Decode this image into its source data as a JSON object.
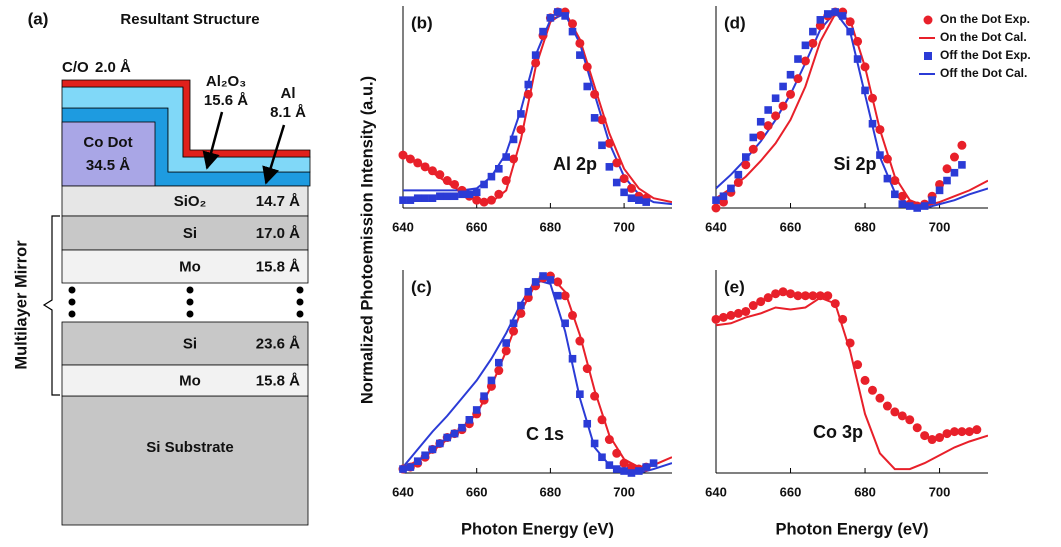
{
  "y_label": "Normalized Photoemission Intensity (a.u.)",
  "diagram": {
    "panel_label": "(a)",
    "title": "Resultant Structure",
    "side_label": "Multilayer Mirror",
    "cap": {
      "label": "C/O",
      "thickness": "2.0 Å"
    },
    "oxide": {
      "label": "Al₂O₃",
      "thickness": "15.6 Å"
    },
    "metal": {
      "label": "Al",
      "thickness": "8.1 Å"
    },
    "dot": {
      "label": "Co Dot",
      "thickness": "34.5 Å"
    },
    "layers": [
      {
        "material": "SiO₂",
        "thickness": "14.7 Å"
      },
      {
        "material": "Si",
        "thickness": "17.0 Å"
      },
      {
        "material": "Mo",
        "thickness": "15.8 Å"
      },
      {
        "material": "Si",
        "thickness": "23.6 Å"
      },
      {
        "material": "Mo",
        "thickness": "15.8 Å"
      }
    ],
    "substrate": "Si Substrate"
  },
  "chart_data": [
    {
      "type": "line",
      "panel_label": "(b)",
      "annotation": "Al 2p",
      "xlim": [
        640,
        713
      ],
      "xticks": [
        640,
        660,
        680,
        700
      ],
      "ylim": [
        0,
        1
      ],
      "series": [
        {
          "color": "#e8202a",
          "style": "circle",
          "x": [
            640,
            642,
            644,
            646,
            648,
            650,
            652,
            654,
            656,
            658,
            660,
            662,
            664,
            666,
            668,
            670,
            672,
            674,
            676,
            678,
            680,
            682,
            684,
            686,
            688,
            690,
            692,
            694,
            696,
            698,
            700,
            702,
            704,
            706
          ],
          "values": [
            0.27,
            0.25,
            0.23,
            0.21,
            0.19,
            0.17,
            0.14,
            0.12,
            0.09,
            0.06,
            0.04,
            0.03,
            0.04,
            0.07,
            0.14,
            0.25,
            0.4,
            0.58,
            0.74,
            0.88,
            0.97,
            1.0,
            1.0,
            0.94,
            0.84,
            0.72,
            0.58,
            0.45,
            0.33,
            0.23,
            0.15,
            0.1,
            0.06,
            0.05
          ]
        },
        {
          "color": "#e8202a",
          "style": "line",
          "x": [
            640,
            644,
            648,
            652,
            656,
            660,
            664,
            668,
            672,
            676,
            680,
            684,
            688,
            692,
            696,
            700,
            704,
            708,
            713
          ],
          "values": [
            0.28,
            0.23,
            0.18,
            0.13,
            0.08,
            0.04,
            0.03,
            0.09,
            0.35,
            0.72,
            0.95,
            1.0,
            0.86,
            0.62,
            0.38,
            0.2,
            0.1,
            0.05,
            0.03
          ]
        },
        {
          "color": "#2b3bd6",
          "style": "square",
          "x": [
            640,
            642,
            644,
            646,
            648,
            650,
            652,
            654,
            656,
            658,
            660,
            662,
            664,
            666,
            668,
            670,
            672,
            674,
            676,
            678,
            680,
            682,
            684,
            686,
            688,
            690,
            692,
            694,
            696,
            698,
            700,
            702,
            704,
            706
          ],
          "values": [
            0.04,
            0.04,
            0.05,
            0.05,
            0.05,
            0.06,
            0.06,
            0.06,
            0.07,
            0.07,
            0.08,
            0.12,
            0.16,
            0.2,
            0.26,
            0.35,
            0.48,
            0.63,
            0.78,
            0.9,
            0.97,
            1.0,
            0.98,
            0.9,
            0.78,
            0.62,
            0.46,
            0.32,
            0.21,
            0.13,
            0.08,
            0.05,
            0.04,
            0.03
          ]
        },
        {
          "color": "#2b3bd6",
          "style": "line",
          "x": [
            640,
            644,
            648,
            652,
            656,
            660,
            664,
            668,
            672,
            676,
            680,
            684,
            688,
            692,
            696,
            700,
            704,
            708,
            713
          ],
          "values": [
            0.09,
            0.09,
            0.09,
            0.09,
            0.09,
            0.1,
            0.16,
            0.28,
            0.5,
            0.78,
            0.96,
            0.99,
            0.84,
            0.58,
            0.33,
            0.16,
            0.07,
            0.03,
            0.02
          ]
        }
      ]
    },
    {
      "type": "line",
      "panel_label": "(d)",
      "annotation": "Si 2p",
      "xlim": [
        640,
        713
      ],
      "xticks": [
        640,
        660,
        680,
        700
      ],
      "ylim": [
        0,
        1
      ],
      "legend": "top-right",
      "series": [
        {
          "name": "On the Dot Exp.",
          "color": "#e8202a",
          "style": "circle",
          "x": [
            640,
            642,
            644,
            646,
            648,
            650,
            652,
            654,
            656,
            658,
            660,
            662,
            664,
            666,
            668,
            670,
            672,
            674,
            676,
            678,
            680,
            682,
            684,
            686,
            688,
            690,
            692,
            694,
            696,
            698,
            700,
            702,
            704,
            706
          ],
          "values": [
            0.0,
            0.03,
            0.08,
            0.13,
            0.22,
            0.3,
            0.37,
            0.42,
            0.47,
            0.52,
            0.58,
            0.66,
            0.75,
            0.84,
            0.93,
            0.98,
            1.0,
            1.0,
            0.95,
            0.85,
            0.72,
            0.56,
            0.4,
            0.25,
            0.14,
            0.06,
            0.02,
            0.01,
            0.02,
            0.06,
            0.12,
            0.2,
            0.26,
            0.32
          ]
        },
        {
          "name": "On the Dot Cal.",
          "color": "#e8202a",
          "style": "line",
          "x": [
            640,
            644,
            648,
            652,
            656,
            660,
            664,
            668,
            672,
            676,
            680,
            684,
            688,
            692,
            696,
            700,
            704,
            708,
            713
          ],
          "values": [
            0.05,
            0.1,
            0.16,
            0.24,
            0.33,
            0.45,
            0.62,
            0.85,
            0.99,
            0.96,
            0.72,
            0.4,
            0.16,
            0.04,
            0.01,
            0.03,
            0.06,
            0.09,
            0.14
          ]
        },
        {
          "name": "Off the Dot Exp.",
          "color": "#2b3bd6",
          "style": "square",
          "x": [
            640,
            642,
            644,
            646,
            648,
            650,
            652,
            654,
            656,
            658,
            660,
            662,
            664,
            666,
            668,
            670,
            672,
            674,
            676,
            678,
            680,
            682,
            684,
            686,
            688,
            690,
            692,
            694,
            696,
            698,
            700,
            702,
            704,
            706
          ],
          "values": [
            0.04,
            0.06,
            0.1,
            0.17,
            0.26,
            0.36,
            0.44,
            0.5,
            0.56,
            0.62,
            0.68,
            0.76,
            0.83,
            0.9,
            0.96,
            0.99,
            1.0,
            0.98,
            0.9,
            0.76,
            0.6,
            0.43,
            0.27,
            0.15,
            0.07,
            0.02,
            0.01,
            0.0,
            0.01,
            0.04,
            0.09,
            0.14,
            0.18,
            0.22
          ]
        },
        {
          "name": "Off the Dot Cal.",
          "color": "#2b3bd6",
          "style": "line",
          "x": [
            640,
            644,
            648,
            652,
            656,
            660,
            664,
            668,
            672,
            676,
            680,
            684,
            688,
            692,
            696,
            700,
            704,
            708,
            713
          ],
          "values": [
            0.1,
            0.17,
            0.25,
            0.34,
            0.45,
            0.58,
            0.74,
            0.91,
            1.0,
            0.9,
            0.58,
            0.26,
            0.08,
            0.01,
            0.0,
            0.02,
            0.04,
            0.07,
            0.1
          ]
        }
      ]
    },
    {
      "type": "line",
      "panel_label": "(c)",
      "annotation": "C 1s",
      "x_label": "Photon Energy (eV)",
      "xlim": [
        640,
        713
      ],
      "xticks": [
        640,
        660,
        680,
        700
      ],
      "ylim": [
        0,
        1
      ],
      "series": [
        {
          "color": "#e8202a",
          "style": "circle",
          "x": [
            640,
            642,
            644,
            646,
            648,
            650,
            652,
            654,
            656,
            658,
            660,
            662,
            664,
            666,
            668,
            670,
            672,
            674,
            676,
            678,
            680,
            682,
            684,
            686,
            688,
            690,
            692,
            694,
            696,
            698,
            700,
            702,
            704,
            706
          ],
          "values": [
            0.02,
            0.03,
            0.05,
            0.08,
            0.12,
            0.15,
            0.18,
            0.2,
            0.22,
            0.25,
            0.3,
            0.37,
            0.44,
            0.52,
            0.62,
            0.72,
            0.81,
            0.89,
            0.95,
            0.99,
            1.0,
            0.97,
            0.9,
            0.8,
            0.67,
            0.53,
            0.39,
            0.27,
            0.17,
            0.1,
            0.05,
            0.03,
            0.02,
            0.03
          ]
        },
        {
          "color": "#e8202a",
          "style": "line",
          "x": [
            640,
            644,
            648,
            652,
            656,
            660,
            664,
            668,
            672,
            676,
            680,
            684,
            688,
            692,
            696,
            700,
            704,
            708,
            713
          ],
          "values": [
            0.03,
            0.06,
            0.11,
            0.17,
            0.23,
            0.3,
            0.44,
            0.62,
            0.82,
            0.96,
            1.0,
            0.92,
            0.7,
            0.42,
            0.19,
            0.07,
            0.03,
            0.04,
            0.08
          ]
        },
        {
          "color": "#2b3bd6",
          "style": "square",
          "x": [
            640,
            642,
            644,
            646,
            648,
            650,
            652,
            654,
            656,
            658,
            660,
            662,
            664,
            666,
            668,
            670,
            672,
            674,
            676,
            678,
            680,
            682,
            684,
            686,
            688,
            690,
            692,
            694,
            696,
            698,
            700,
            702,
            704,
            706,
            708
          ],
          "values": [
            0.02,
            0.03,
            0.06,
            0.09,
            0.12,
            0.15,
            0.18,
            0.2,
            0.23,
            0.27,
            0.32,
            0.39,
            0.47,
            0.56,
            0.66,
            0.76,
            0.85,
            0.92,
            0.97,
            1.0,
            0.98,
            0.9,
            0.76,
            0.58,
            0.4,
            0.25,
            0.15,
            0.08,
            0.04,
            0.02,
            0.01,
            0.0,
            0.01,
            0.03,
            0.05
          ]
        },
        {
          "color": "#2b3bd6",
          "style": "line",
          "x": [
            640,
            644,
            648,
            652,
            656,
            660,
            664,
            668,
            672,
            676,
            680,
            684,
            688,
            692,
            696,
            700,
            704,
            708,
            713
          ],
          "values": [
            0.03,
            0.12,
            0.21,
            0.29,
            0.38,
            0.47,
            0.58,
            0.71,
            0.86,
            0.98,
            0.96,
            0.72,
            0.38,
            0.13,
            0.04,
            0.01,
            0.0,
            0.02,
            0.05
          ]
        }
      ]
    },
    {
      "type": "line",
      "panel_label": "(e)",
      "annotation": "Co 3p",
      "x_label": "Photon Energy (eV)",
      "xlim": [
        640,
        713
      ],
      "xticks": [
        640,
        660,
        680,
        700
      ],
      "ylim": [
        0,
        1
      ],
      "series": [
        {
          "color": "#e8202a",
          "style": "circle",
          "x": [
            640,
            642,
            644,
            646,
            648,
            650,
            652,
            654,
            656,
            658,
            660,
            662,
            664,
            666,
            668,
            670,
            672,
            674,
            676,
            678,
            680,
            682,
            684,
            686,
            688,
            690,
            692,
            694,
            696,
            698,
            700,
            702,
            704,
            706,
            708,
            710
          ],
          "values": [
            0.78,
            0.79,
            0.8,
            0.81,
            0.82,
            0.85,
            0.87,
            0.89,
            0.91,
            0.92,
            0.91,
            0.9,
            0.9,
            0.9,
            0.9,
            0.9,
            0.86,
            0.78,
            0.66,
            0.55,
            0.47,
            0.42,
            0.38,
            0.34,
            0.31,
            0.29,
            0.27,
            0.23,
            0.19,
            0.17,
            0.18,
            0.2,
            0.21,
            0.21,
            0.21,
            0.22
          ]
        },
        {
          "color": "#e8202a",
          "style": "line",
          "x": [
            640,
            644,
            648,
            652,
            656,
            660,
            664,
            668,
            672,
            676,
            680,
            684,
            688,
            692,
            696,
            700,
            704,
            708,
            713
          ],
          "values": [
            0.75,
            0.76,
            0.79,
            0.81,
            0.84,
            0.83,
            0.84,
            0.89,
            0.86,
            0.62,
            0.3,
            0.1,
            0.02,
            0.02,
            0.05,
            0.09,
            0.13,
            0.16,
            0.19
          ]
        }
      ]
    }
  ]
}
